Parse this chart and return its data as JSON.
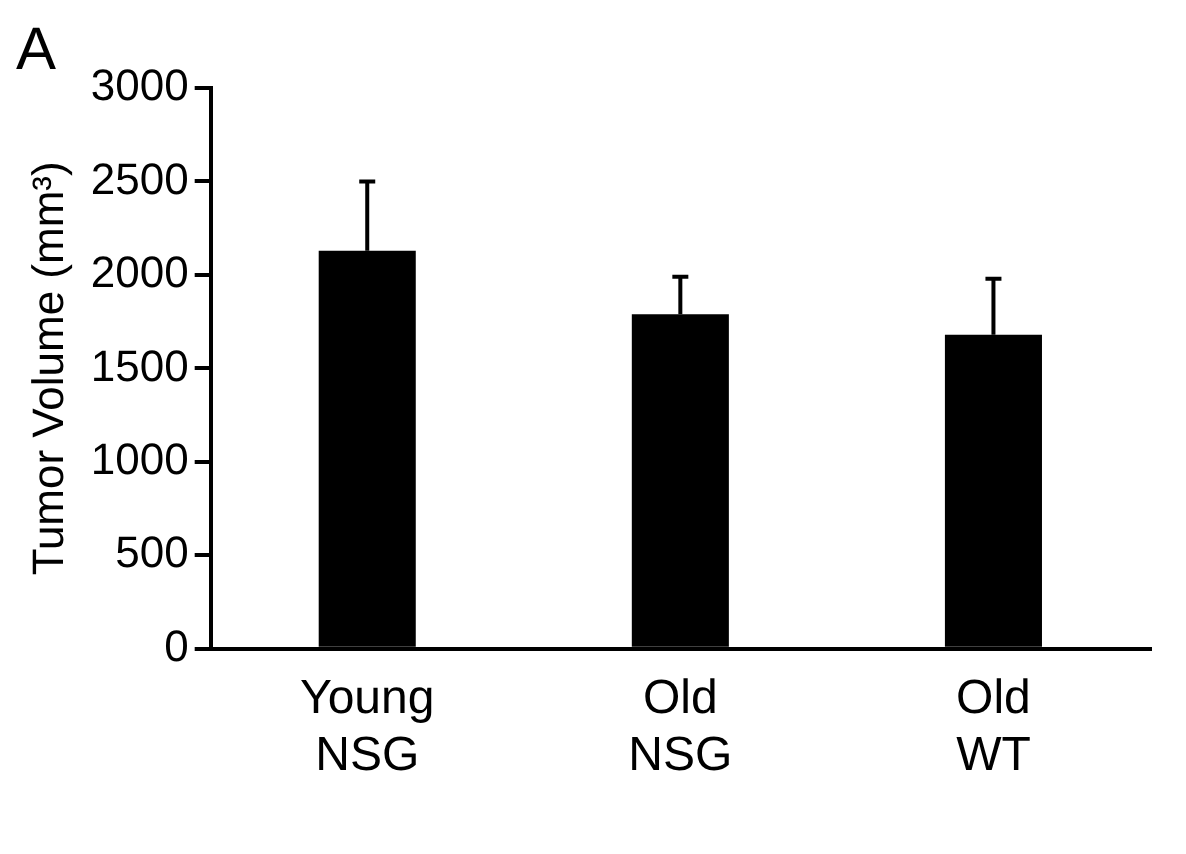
{
  "chart_data": {
    "type": "bar",
    "title": "A",
    "ylabel": "Tumor Volume (mm³)",
    "categories": [
      "Young NSG",
      "Old NSG",
      "Old WT"
    ],
    "values": [
      2130,
      1790,
      1680
    ],
    "errors": [
      [
        2130,
        2500
      ],
      [
        1790,
        1990
      ],
      [
        1680,
        1980
      ]
    ],
    "color": "#000000",
    "ylim": [
      0,
      3000
    ],
    "yticks": [
      0,
      500,
      1000,
      1500,
      2000,
      2500,
      3000
    ],
    "grid": false,
    "legend": false
  }
}
